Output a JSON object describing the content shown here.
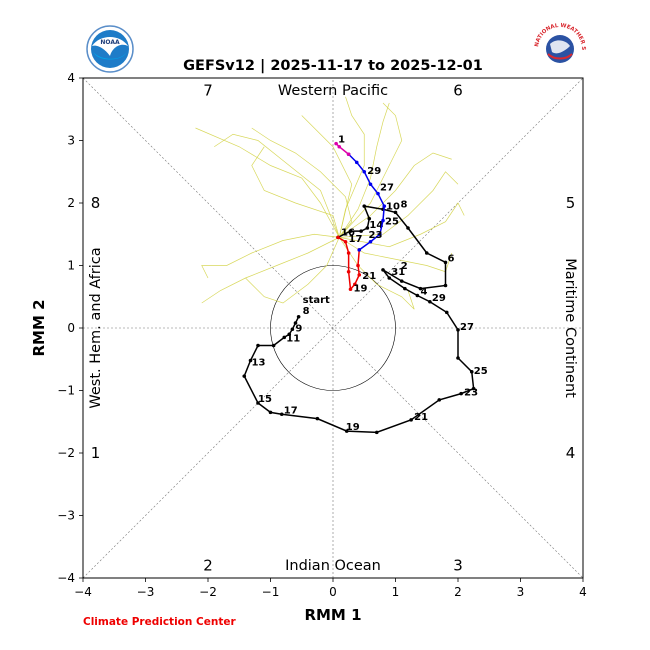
{
  "logos": {
    "left": "NOAA",
    "right": "NATIONAL WEATHER SERVICE"
  },
  "chart_data": {
    "type": "scatter",
    "title": "GEFSv12 | 2025-11-17 to 2025-12-01",
    "xlabel": "RMM 1",
    "ylabel": "RMM 2",
    "xlim": [
      -4,
      4
    ],
    "ylim": [
      -4,
      4
    ],
    "xticks": [
      "−4",
      "−3",
      "−2",
      "−1",
      "0",
      "1",
      "2",
      "3",
      "4"
    ],
    "yticks": [
      "−4",
      "−3",
      "−2",
      "−1",
      "0",
      "1",
      "2",
      "3",
      "4"
    ],
    "grid": "diagonal and axis reference lines",
    "unit_circle_radius": 1,
    "region_labels": {
      "top": "Western Pacific",
      "bottom": "Indian Ocean",
      "left": "West. Hem. and Africa",
      "right": "Maritime Continent"
    },
    "phase_labels": [
      {
        "label": "1",
        "x": -3.8,
        "y": -2.0
      },
      {
        "label": "2",
        "x": -2.0,
        "y": -3.8
      },
      {
        "label": "3",
        "x": 2.0,
        "y": -3.8
      },
      {
        "label": "4",
        "x": 3.8,
        "y": -2.0
      },
      {
        "label": "5",
        "x": 3.8,
        "y": 2.0
      },
      {
        "label": "6",
        "x": 2.0,
        "y": 3.8
      },
      {
        "label": "7",
        "x": -2.0,
        "y": 3.8
      },
      {
        "label": "8",
        "x": -3.8,
        "y": 2.0
      }
    ],
    "series": [
      {
        "name": "observed",
        "color": "#000000",
        "points": [
          [
            -0.55,
            0.18
          ],
          [
            -0.6,
            0.08
          ],
          [
            -0.65,
            -0.02
          ],
          [
            -0.7,
            -0.1
          ],
          [
            -0.78,
            -0.15
          ],
          [
            -0.95,
            -0.28
          ],
          [
            -1.2,
            -0.28
          ],
          [
            -1.32,
            -0.52
          ],
          [
            -1.42,
            -0.77
          ],
          [
            -1.2,
            -1.2
          ],
          [
            -1.0,
            -1.35
          ],
          [
            -0.82,
            -1.38
          ],
          [
            -0.25,
            -1.45
          ],
          [
            0.22,
            -1.65
          ],
          [
            0.7,
            -1.67
          ],
          [
            1.25,
            -1.47
          ],
          [
            1.7,
            -1.15
          ],
          [
            2.05,
            -1.05
          ],
          [
            2.25,
            -0.97
          ],
          [
            2.22,
            -0.7
          ],
          [
            2.0,
            -0.48
          ],
          [
            2.0,
            -0.03
          ],
          [
            1.82,
            0.25
          ],
          [
            1.55,
            0.42
          ],
          [
            1.35,
            0.52
          ],
          [
            1.15,
            0.63
          ],
          [
            0.9,
            0.8
          ],
          [
            0.8,
            0.93
          ],
          [
            1.1,
            0.75
          ],
          [
            1.4,
            0.63
          ],
          [
            1.8,
            0.68
          ],
          [
            1.8,
            1.05
          ],
          [
            1.5,
            1.2
          ],
          [
            1.2,
            1.6
          ],
          [
            1.0,
            1.85
          ],
          [
            0.8,
            1.9
          ],
          [
            0.5,
            1.95
          ],
          [
            0.58,
            1.75
          ],
          [
            0.55,
            1.6
          ],
          [
            0.45,
            1.55
          ],
          [
            0.28,
            1.55
          ],
          [
            0.08,
            1.45
          ]
        ],
        "labels": [
          {
            "text": "start",
            "i": 0,
            "dx": 4,
            "dy": -14
          },
          {
            "text": "8",
            "i": 0,
            "dx": 4,
            "dy": -3
          },
          {
            "text": "9",
            "i": 2,
            "dx": 3,
            "dy": 2
          },
          {
            "text": "11",
            "i": 4,
            "dx": 2,
            "dy": 4
          },
          {
            "text": "13",
            "i": 7,
            "dx": 1,
            "dy": 5
          },
          {
            "text": "15",
            "i": 9,
            "dx": 0,
            "dy": -1
          },
          {
            "text": "17",
            "i": 11,
            "dx": 2,
            "dy": -1
          },
          {
            "text": "19",
            "i": 13,
            "dx": -1,
            "dy": -1
          },
          {
            "text": "21",
            "i": 15,
            "dx": 3,
            "dy": 0
          },
          {
            "text": "23",
            "i": 17,
            "dx": 3,
            "dy": 2
          },
          {
            "text": "25",
            "i": 19,
            "dx": 2,
            "dy": 2
          },
          {
            "text": "27",
            "i": 21,
            "dx": 2,
            "dy": 0
          },
          {
            "text": "29",
            "i": 23,
            "dx": 2,
            "dy": -1
          },
          {
            "text": "31",
            "i": 26,
            "dx": 2,
            "dy": -3
          },
          {
            "text": "2",
            "i": 28,
            "dx": -1,
            "dy": -12
          },
          {
            "text": "4",
            "i": 29,
            "dx": 0,
            "dy": 6
          },
          {
            "text": "6",
            "i": 31,
            "dx": 2,
            "dy": -1
          },
          {
            "text": "8",
            "i": 34,
            "dx": 5,
            "dy": -5
          },
          {
            "text": "10",
            "i": 35,
            "dx": 3,
            "dy": 0
          },
          {
            "text": "14",
            "i": 38,
            "dx": 2,
            "dy": 0
          },
          {
            "text": "16",
            "i": 41,
            "dx": 3,
            "dy": -2
          }
        ]
      },
      {
        "name": "forecast-red",
        "color": "#ee0000",
        "points": [
          [
            0.08,
            1.45
          ],
          [
            0.2,
            1.38
          ],
          [
            0.25,
            1.2
          ],
          [
            0.25,
            0.9
          ],
          [
            0.28,
            0.62
          ],
          [
            0.35,
            0.7
          ],
          [
            0.42,
            0.85
          ],
          [
            0.4,
            1.0
          ],
          [
            0.42,
            1.25
          ]
        ],
        "labels": [
          {
            "text": "17",
            "i": 1,
            "dx": 3,
            "dy": 0
          },
          {
            "text": "19",
            "i": 4,
            "dx": 3,
            "dy": 2
          },
          {
            "text": "21",
            "i": 6,
            "dx": 3,
            "dy": 4
          }
        ]
      },
      {
        "name": "forecast-blue",
        "color": "#0000ee",
        "points": [
          [
            0.42,
            1.25
          ],
          [
            0.6,
            1.38
          ],
          [
            0.75,
            1.5
          ],
          [
            0.8,
            1.72
          ],
          [
            0.82,
            1.95
          ],
          [
            0.72,
            2.15
          ],
          [
            0.6,
            2.3
          ],
          [
            0.5,
            2.5
          ],
          [
            0.38,
            2.65
          ],
          [
            0.25,
            2.78
          ]
        ],
        "labels": [
          {
            "text": "23",
            "i": 1,
            "dx": -2,
            "dy": -4
          },
          {
            "text": "25",
            "i": 3,
            "dx": 2,
            "dy": 4
          },
          {
            "text": "27",
            "i": 5,
            "dx": 2,
            "dy": -3
          },
          {
            "text": "29",
            "i": 7,
            "dx": 3,
            "dy": 2
          }
        ]
      },
      {
        "name": "forecast-magenta",
        "color": "#dd00aa",
        "points": [
          [
            0.25,
            2.78
          ],
          [
            0.1,
            2.9
          ],
          [
            0.05,
            2.95
          ]
        ],
        "labels": [
          {
            "text": "1",
            "i": 2,
            "dx": 2,
            "dy": -1
          }
        ]
      }
    ],
    "ensemble": {
      "name": "ensemble members",
      "color": "#d4d44a",
      "members": [
        [
          [
            0.1,
            1.45
          ],
          [
            0.3,
            1.7
          ],
          [
            0.2,
            2.1
          ],
          [
            -0.2,
            2.5
          ],
          [
            -0.6,
            2.8
          ],
          [
            -1.0,
            3.0
          ],
          [
            -1.3,
            3.2
          ]
        ],
        [
          [
            0.1,
            1.45
          ],
          [
            0.4,
            1.9
          ],
          [
            0.6,
            2.4
          ],
          [
            0.7,
            2.9
          ],
          [
            0.8,
            3.3
          ],
          [
            0.9,
            3.6
          ]
        ],
        [
          [
            0.1,
            1.45
          ],
          [
            -0.3,
            1.5
          ],
          [
            -0.8,
            1.4
          ],
          [
            -1.3,
            1.2
          ],
          [
            -1.7,
            1.0
          ],
          [
            -2.1,
            1.0
          ],
          [
            -2.0,
            0.8
          ]
        ],
        [
          [
            0.1,
            1.45
          ],
          [
            0.5,
            1.2
          ],
          [
            1.0,
            1.1
          ],
          [
            1.5,
            1.0
          ],
          [
            1.8,
            0.9
          ],
          [
            1.9,
            1.2
          ]
        ],
        [
          [
            0.1,
            1.45
          ],
          [
            -0.2,
            2.0
          ],
          [
            -0.5,
            2.4
          ],
          [
            -1.0,
            2.6
          ],
          [
            -1.5,
            2.9
          ],
          [
            -2.2,
            3.2
          ]
        ],
        [
          [
            0.1,
            1.45
          ],
          [
            0.6,
            1.8
          ],
          [
            1.0,
            2.2
          ],
          [
            1.3,
            2.6
          ],
          [
            1.6,
            2.8
          ],
          [
            1.9,
            2.7
          ]
        ],
        [
          [
            0.1,
            1.45
          ],
          [
            -0.1,
            1.0
          ],
          [
            -0.4,
            0.7
          ],
          [
            -0.8,
            0.4
          ],
          [
            -1.1,
            0.5
          ],
          [
            -1.4,
            0.8
          ]
        ],
        [
          [
            0.1,
            1.45
          ],
          [
            0.3,
            2.3
          ],
          [
            0.0,
            2.9
          ],
          [
            -0.3,
            3.2
          ],
          [
            -0.5,
            3.4
          ]
        ],
        [
          [
            0.1,
            1.45
          ],
          [
            0.8,
            1.5
          ],
          [
            1.2,
            1.8
          ],
          [
            1.6,
            2.2
          ],
          [
            1.8,
            2.5
          ],
          [
            2.0,
            2.3
          ]
        ],
        [
          [
            0.1,
            1.45
          ],
          [
            0.0,
            1.8
          ],
          [
            -0.6,
            2.0
          ],
          [
            -1.1,
            2.2
          ],
          [
            -1.3,
            2.6
          ],
          [
            -1.1,
            2.9
          ]
        ],
        [
          [
            0.1,
            1.45
          ],
          [
            0.4,
            1.0
          ],
          [
            0.7,
            0.7
          ],
          [
            1.1,
            0.5
          ],
          [
            1.3,
            0.3
          ],
          [
            1.2,
            0.6
          ]
        ],
        [
          [
            0.1,
            1.45
          ],
          [
            0.2,
            1.9
          ],
          [
            0.5,
            2.6
          ],
          [
            0.5,
            3.1
          ],
          [
            0.3,
            3.4
          ],
          [
            0.2,
            3.7
          ]
        ],
        [
          [
            0.1,
            1.45
          ],
          [
            -0.4,
            1.2
          ],
          [
            -0.9,
            1.0
          ],
          [
            -1.4,
            0.8
          ],
          [
            -1.8,
            0.6
          ],
          [
            -2.1,
            0.4
          ]
        ],
        [
          [
            0.1,
            1.45
          ],
          [
            0.9,
            1.3
          ],
          [
            1.4,
            1.5
          ],
          [
            1.8,
            1.7
          ],
          [
            2.0,
            2.0
          ],
          [
            2.1,
            1.8
          ]
        ],
        [
          [
            0.1,
            1.45
          ],
          [
            -0.2,
            2.2
          ],
          [
            -0.7,
            2.6
          ],
          [
            -1.2,
            3.0
          ],
          [
            -1.6,
            3.1
          ],
          [
            -1.9,
            2.9
          ]
        ],
        [
          [
            0.1,
            1.45
          ],
          [
            0.6,
            2.0
          ],
          [
            0.9,
            2.6
          ],
          [
            1.1,
            3.0
          ],
          [
            1.0,
            3.4
          ],
          [
            0.8,
            3.6
          ]
        ]
      ]
    }
  }
}
